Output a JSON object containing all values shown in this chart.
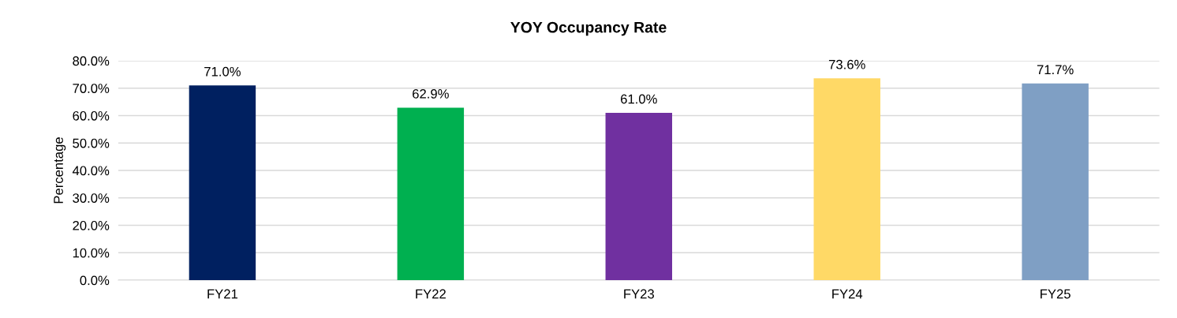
{
  "chart_data": {
    "type": "bar",
    "title": "YOY Occupancy Rate",
    "ylabel": "Percentage",
    "categories": [
      "FY21",
      "FY22",
      "FY23",
      "FY24",
      "FY25"
    ],
    "values": [
      71.0,
      62.9,
      61.0,
      73.6,
      71.7
    ],
    "colors": [
      "#002060",
      "#00b050",
      "#7030a0",
      "#ffd966",
      "#7f9fc4"
    ],
    "value_labels": [
      "71.0%",
      "62.9%",
      "61.0%",
      "73.6%",
      "71.7%"
    ],
    "ylim": [
      0,
      80
    ],
    "yticks": [
      {
        "value": 0,
        "label": "0.0%"
      },
      {
        "value": 10,
        "label": "10.0%"
      },
      {
        "value": 20,
        "label": "20.0%"
      },
      {
        "value": 30,
        "label": "30.0%"
      },
      {
        "value": 40,
        "label": "40.0%"
      },
      {
        "value": 50,
        "label": "50.0%"
      },
      {
        "value": 60,
        "label": "60.0%"
      },
      {
        "value": 70,
        "label": "70.0%"
      },
      {
        "value": 80,
        "label": "80.0%"
      }
    ],
    "grid": "y",
    "legend": false
  }
}
